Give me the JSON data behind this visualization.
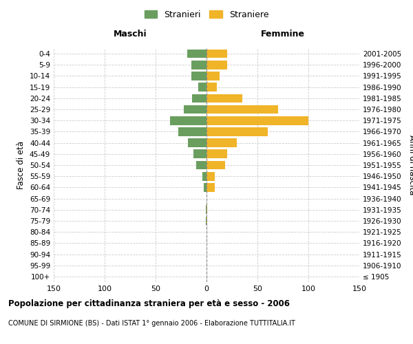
{
  "age_groups": [
    "100+",
    "95-99",
    "90-94",
    "85-89",
    "80-84",
    "75-79",
    "70-74",
    "65-69",
    "60-64",
    "55-59",
    "50-54",
    "45-49",
    "40-44",
    "35-39",
    "30-34",
    "25-29",
    "20-24",
    "15-19",
    "10-14",
    "5-9",
    "0-4"
  ],
  "birth_years": [
    "≤ 1905",
    "1906-1910",
    "1911-1915",
    "1916-1920",
    "1921-1925",
    "1926-1930",
    "1931-1935",
    "1936-1940",
    "1941-1945",
    "1946-1950",
    "1951-1955",
    "1956-1960",
    "1961-1965",
    "1966-1970",
    "1971-1975",
    "1976-1980",
    "1981-1985",
    "1986-1990",
    "1991-1995",
    "1996-2000",
    "2001-2005"
  ],
  "males": [
    0,
    0,
    0,
    0,
    0,
    1,
    1,
    0,
    3,
    4,
    10,
    13,
    18,
    28,
    36,
    22,
    14,
    8,
    15,
    15,
    19
  ],
  "females": [
    0,
    0,
    0,
    0,
    0,
    1,
    1,
    0,
    8,
    8,
    18,
    20,
    30,
    60,
    100,
    70,
    35,
    10,
    13,
    20,
    20
  ],
  "male_color": "#6a9e5f",
  "female_color": "#f0b429",
  "male_label": "Stranieri",
  "female_label": "Straniere",
  "title": "Popolazione per cittadinanza straniera per età e sesso - 2006",
  "subtitle": "COMUNE DI SIRMIONE (BS) - Dati ISTAT 1° gennaio 2006 - Elaborazione TUTTITALIA.IT",
  "xlabel_left": "Maschi",
  "xlabel_right": "Femmine",
  "ylabel_left": "Fasce di età",
  "ylabel_right": "Anni di nascita",
  "xlim": 150,
  "background_color": "#ffffff",
  "grid_color": "#cccccc"
}
